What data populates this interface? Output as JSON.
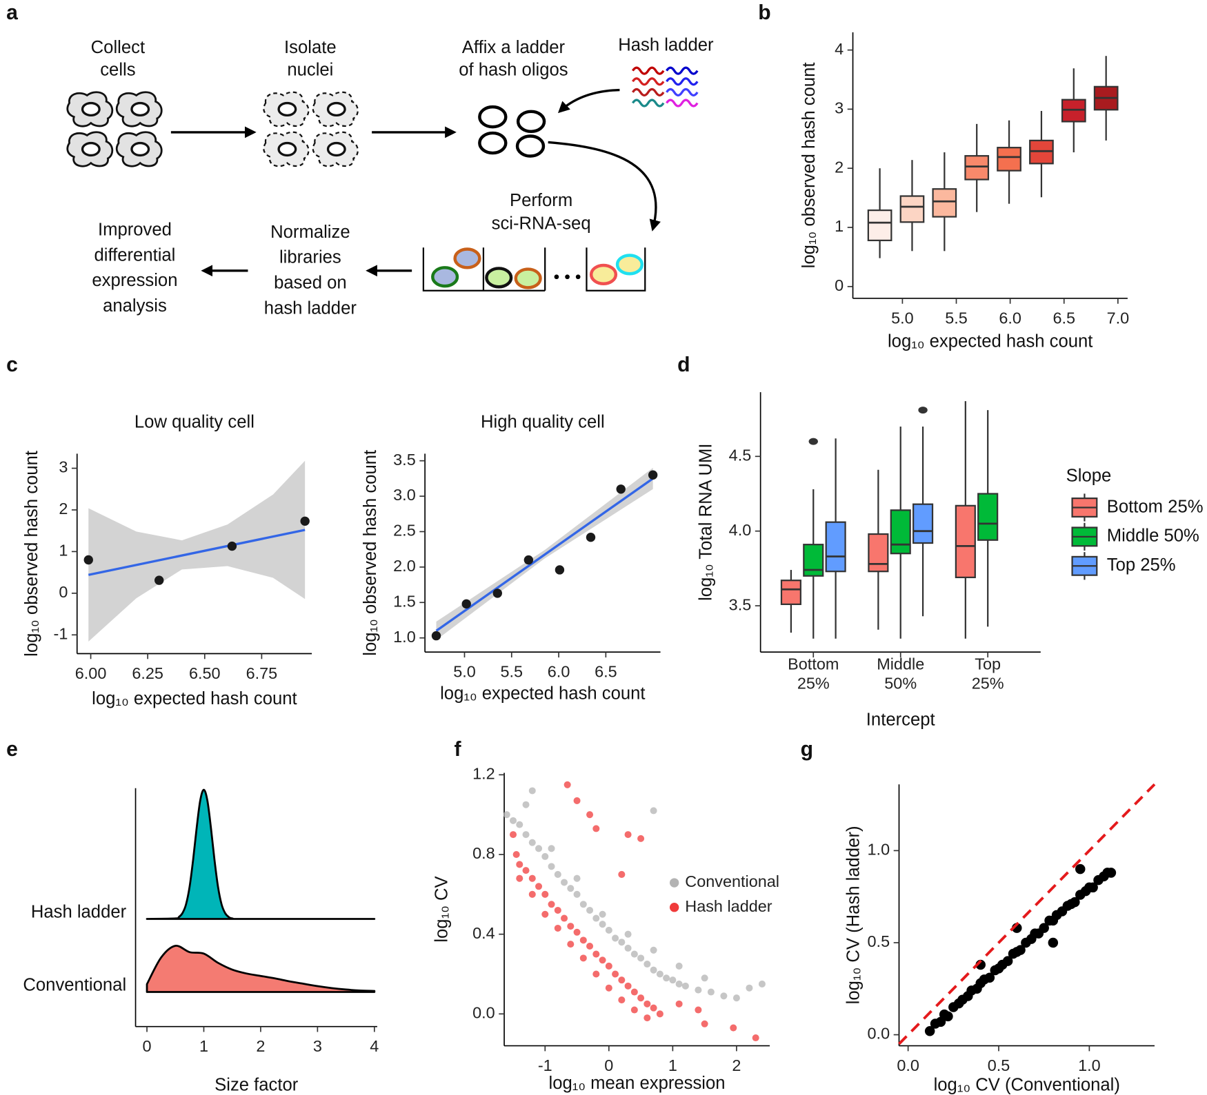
{
  "diagram": {
    "panel": "a",
    "steps": [
      [
        "Collect",
        "cells"
      ],
      [
        "Isolate",
        "nuclei"
      ],
      [
        "Affix a ladder",
        "of hash oligos"
      ],
      [
        "Perform",
        "sci-RNA-seq"
      ],
      [
        "Normalize",
        "libraries",
        "based on",
        "hash ladder"
      ],
      [
        "Improved",
        "differential",
        "expression",
        "analysis"
      ]
    ],
    "hash_ladder": "Hash ladder"
  },
  "chart_data": [
    {
      "panel": "b",
      "type": "box",
      "xlabel": "log₁₀ expected hash count",
      "ylabel": "log₁₀ observed hash count",
      "x": [
        4.79,
        5.09,
        5.39,
        5.69,
        5.99,
        6.29,
        6.59,
        6.89
      ],
      "low": [
        0.48,
        0.6,
        0.6,
        1.26,
        1.4,
        1.51,
        2.27,
        2.47
      ],
      "q1": [
        0.78,
        1.09,
        1.18,
        1.81,
        1.96,
        2.08,
        2.79,
        2.99
      ],
      "median": [
        1.08,
        1.35,
        1.44,
        2.03,
        2.19,
        2.29,
        2.99,
        3.19
      ],
      "q3": [
        1.29,
        1.53,
        1.65,
        2.21,
        2.35,
        2.47,
        3.16,
        3.38
      ],
      "high": [
        2.0,
        2.14,
        2.27,
        2.75,
        2.81,
        2.97,
        3.69,
        3.9
      ],
      "colors": [
        "#fdeee8",
        "#fcd5c4",
        "#fbb89e",
        "#f8896b",
        "#f4704f",
        "#e3463a",
        "#c7212b",
        "#a91b1f"
      ],
      "xlim": [
        4.54,
        7.09
      ],
      "xticks": [
        {
          "value": 5,
          "label": "5.0"
        },
        5.5,
        {
          "value": 6,
          "label": "6.0"
        },
        6.5,
        {
          "value": 7,
          "label": "7.0"
        }
      ],
      "ylim": [
        -0.2,
        4.3
      ],
      "yticks": [
        0,
        1,
        2,
        3,
        4
      ]
    },
    {
      "panel": "c",
      "type": "scatter_fit",
      "title": "Low quality cell",
      "xlabel": "log₁₀ expected hash count",
      "ylabel": "log₁₀ observed hash count",
      "x": [
        5.99,
        6.3,
        6.62,
        6.94
      ],
      "y": [
        0.8,
        0.31,
        1.13,
        1.73
      ],
      "fit": {
        "x": [
          5.99,
          6.94
        ],
        "y": [
          0.44,
          1.52
        ]
      },
      "band": {
        "x": [
          5.99,
          6.2,
          6.4,
          6.6,
          6.8,
          6.94
        ],
        "lower": [
          -1.16,
          -0.12,
          0.57,
          0.65,
          0.37,
          -0.14
        ],
        "upper": [
          2.04,
          1.48,
          1.27,
          1.65,
          2.37,
          3.18
        ]
      },
      "point_color": "#1a1a1a",
      "line_color": "#3366e6",
      "band_color": "#d3d3d3",
      "xlim": [
        5.94,
        6.97
      ],
      "xticks": [
        {
          "value": 6,
          "label": "6.00"
        },
        6.25,
        {
          "value": 6.5,
          "label": "6.50"
        },
        6.75
      ],
      "ylim": [
        -1.45,
        3.35
      ],
      "yticks": [
        -1,
        0,
        1,
        2,
        3
      ]
    },
    {
      "type": "scatter_fit",
      "title": "High quality cell",
      "xlabel": "log₁₀ expected hash count",
      "ylabel": "log₁₀ observed hash count",
      "x": [
        4.7,
        5.02,
        5.35,
        5.68,
        6.01,
        6.34,
        6.66,
        7.0
      ],
      "y": [
        1.03,
        1.48,
        1.63,
        2.1,
        1.96,
        2.42,
        3.1,
        3.3
      ],
      "fit": {
        "x": [
          4.7,
          7.0
        ],
        "y": [
          1.1,
          3.25
        ]
      },
      "band": {
        "x": [
          4.7,
          5.85,
          7.0
        ],
        "lower": [
          0.97,
          2.12,
          3.1
        ],
        "upper": [
          1.23,
          2.24,
          3.4
        ]
      },
      "point_color": "#1a1a1a",
      "line_color": "#3366e6",
      "band_color": "#d3d3d3",
      "xlim": [
        4.58,
        7.08
      ],
      "xticks": [
        {
          "value": 5,
          "label": "5.0"
        },
        5.5,
        {
          "value": 6,
          "label": "6.0"
        },
        6.5
      ],
      "ylim": [
        0.8,
        3.6
      ],
      "yticks": [
        {
          "value": 1,
          "label": "1.0"
        },
        1.5,
        {
          "value": 2,
          "label": "2.0"
        },
        2.5,
        {
          "value": 3,
          "label": "3.0"
        },
        3.5
      ]
    },
    {
      "panel": "d",
      "type": "grouped_box",
      "categories": [
        [
          "Bottom",
          "25%"
        ],
        [
          "Middle",
          "50%"
        ],
        [
          "Top",
          "25%"
        ]
      ],
      "xlabel": "Intercept",
      "ylabel": "log₁₀ Total RNA UMI",
      "legend_title": "Slope",
      "series": [
        {
          "name": "Bottom 25%",
          "color": "#f8766d",
          "boxes": [
            {
              "low": 3.32,
              "q1": 3.51,
              "median": 3.61,
              "q3": 3.67,
              "high": 3.74,
              "outliers": []
            },
            {
              "low": 3.34,
              "q1": 3.73,
              "median": 3.78,
              "q3": 3.98,
              "high": 4.41,
              "outliers": []
            },
            {
              "low": 3.28,
              "q1": 3.69,
              "median": 3.9,
              "q3": 4.17,
              "high": 4.87,
              "outliers": []
            }
          ]
        },
        {
          "name": "Middle 50%",
          "color": "#00ba38",
          "boxes": [
            {
              "low": 3.28,
              "q1": 3.7,
              "median": 3.74,
              "q3": 3.91,
              "high": 4.28,
              "outliers": [
                4.6
              ]
            },
            {
              "low": 3.28,
              "q1": 3.85,
              "median": 3.91,
              "q3": 4.14,
              "high": 4.7,
              "outliers": []
            },
            {
              "low": 3.36,
              "q1": 3.94,
              "median": 4.05,
              "q3": 4.25,
              "high": 4.81,
              "outliers": []
            }
          ]
        },
        {
          "name": "Top 25%",
          "color": "#619cff",
          "boxes": [
            {
              "low": 3.28,
              "q1": 3.73,
              "median": 3.83,
              "q3": 4.06,
              "high": 4.62,
              "outliers": []
            },
            {
              "low": 3.43,
              "q1": 3.92,
              "median": 4.0,
              "q3": 4.18,
              "high": 4.7,
              "outliers": [
                4.81
              ]
            },
            null
          ]
        }
      ],
      "ylim": [
        3.19,
        4.93
      ],
      "yticks": [
        3.5,
        {
          "value": 4,
          "label": "4.0"
        },
        4.5
      ]
    },
    {
      "panel": "e",
      "type": "ridge",
      "xlabel": "Size factor",
      "series": [
        {
          "name": "Hash ladder",
          "color": "#00b5b8",
          "x": [
            0,
            0.5,
            0.5625,
            0.625,
            0.6875,
            0.75,
            0.8125,
            0.875,
            0.9375,
            1,
            1.0625,
            1.125,
            1.1875,
            1.25,
            1.3125,
            1.375,
            1.4375,
            1.5,
            1.75,
            4
          ],
          "values": [
            0,
            0.01,
            0.04,
            0.12,
            0.3,
            0.66,
            1.22,
            1.88,
            2.44,
            2.66,
            2.44,
            1.88,
            1.22,
            0.66,
            0.3,
            0.12,
            0.04,
            0.01,
            0,
            0
          ]
        },
        {
          "name": "Conventional",
          "color": "#f47b72",
          "x": [
            0,
            0.25,
            0.5,
            0.75,
            1,
            1.25,
            1.5,
            1.75,
            2,
            2.25,
            2.5,
            2.75,
            3,
            3.25,
            3.5,
            3.75,
            4
          ],
          "values": [
            0.16,
            0.71,
            0.95,
            0.82,
            0.79,
            0.6,
            0.46,
            0.38,
            0.33,
            0.28,
            0.22,
            0.17,
            0.12,
            0.08,
            0.05,
            0.03,
            0.02
          ]
        }
      ],
      "xlim": [
        -0.2,
        4.05
      ],
      "xticks": [
        0,
        1,
        2,
        3,
        4
      ]
    },
    {
      "panel": "f",
      "type": "scatter",
      "xlabel": "log₁₀ mean expression",
      "ylabel": "log₁₀ CV",
      "series": [
        {
          "name": "Conventional",
          "color": "#b3b3b3",
          "x": [
            -1.6,
            -1.5,
            -1.4,
            -1.3,
            -1.2,
            -1.1,
            -1.0,
            -0.9,
            -0.8,
            -0.7,
            -0.6,
            -0.5,
            -0.4,
            -0.3,
            -0.2,
            -0.1,
            0,
            0.1,
            0.2,
            0.3,
            0.4,
            0.5,
            0.6,
            0.7,
            0.8,
            0.9,
            1.0,
            1.1,
            1.2,
            1.4,
            1.6,
            1.8,
            2.0,
            2.2,
            2.4,
            -1.3,
            -0.9,
            -0.5,
            -0.1,
            0.3,
            0.7,
            1.1,
            1.5,
            0.7,
            -1.2
          ],
          "y": [
            1.0,
            0.97,
            0.95,
            0.9,
            0.86,
            0.83,
            0.79,
            0.74,
            0.7,
            0.66,
            0.63,
            0.6,
            0.55,
            0.52,
            0.48,
            0.45,
            0.42,
            0.38,
            0.36,
            0.33,
            0.3,
            0.28,
            0.25,
            0.22,
            0.2,
            0.18,
            0.17,
            0.15,
            0.14,
            0.12,
            0.11,
            0.09,
            0.08,
            0.13,
            0.15,
            1.05,
            0.83,
            0.68,
            0.5,
            0.4,
            0.32,
            0.24,
            0.18,
            1.02,
            1.12
          ]
        },
        {
          "name": "Hash ladder",
          "color": "#f03b3b",
          "x": [
            -1.5,
            -1.45,
            -1.4,
            -1.3,
            -1.2,
            -1.1,
            -1.0,
            -0.9,
            -0.8,
            -0.7,
            -0.6,
            -0.5,
            -0.4,
            -0.3,
            -0.2,
            -0.1,
            0,
            0.1,
            0.2,
            0.3,
            0.4,
            0.5,
            0.6,
            0.7,
            0.8,
            -1.4,
            -1.2,
            -1.0,
            -0.8,
            -0.6,
            -0.4,
            -0.2,
            0,
            0.2,
            0.4,
            0.6,
            -0.65,
            -0.5,
            -0.3,
            -0.2,
            0.3,
            0.5,
            0.2,
            1.1,
            1.4,
            1.5,
            1.95,
            2.3
          ],
          "y": [
            0.9,
            0.8,
            0.75,
            0.72,
            0.68,
            0.64,
            0.6,
            0.55,
            0.52,
            0.48,
            0.44,
            0.41,
            0.37,
            0.34,
            0.3,
            0.27,
            0.24,
            0.2,
            0.17,
            0.14,
            0.11,
            0.08,
            0.05,
            0.03,
            0,
            0.68,
            0.6,
            0.5,
            0.43,
            0.35,
            0.28,
            0.2,
            0.13,
            0.07,
            0.02,
            -0.02,
            1.15,
            1.07,
            1.0,
            0.93,
            0.9,
            0.88,
            0.7,
            0.05,
            0.02,
            -0.05,
            -0.07,
            -0.12
          ]
        }
      ],
      "xlim": [
        -1.64,
        2.52
      ],
      "xticks": [
        -1,
        0,
        1,
        2
      ],
      "ylim": [
        -0.16,
        1.21
      ],
      "yticks": [
        {
          "value": 0,
          "label": "0.0"
        },
        0.4,
        0.8,
        1.2
      ]
    },
    {
      "panel": "g",
      "type": "scatter",
      "xlabel": "log₁₀ CV (Conventional)",
      "ylabel": "log₁₀ CV (Hash ladder)",
      "series": [
        {
          "color": "#000000",
          "x": [
            0.12,
            0.15,
            0.18,
            0.2,
            0.22,
            0.25,
            0.28,
            0.3,
            0.33,
            0.35,
            0.38,
            0.4,
            0.42,
            0.45,
            0.48,
            0.5,
            0.52,
            0.55,
            0.58,
            0.6,
            0.62,
            0.65,
            0.68,
            0.7,
            0.72,
            0.75,
            0.78,
            0.8,
            0.82,
            0.85,
            0.88,
            0.9,
            0.92,
            0.95,
            0.98,
            1.0,
            1.02,
            1.05,
            1.08,
            1.1,
            1.12,
            0.95,
            0.8,
            0.6,
            0.4
          ],
          "y": [
            0.02,
            0.06,
            0.07,
            0.11,
            0.1,
            0.15,
            0.17,
            0.19,
            0.21,
            0.24,
            0.25,
            0.28,
            0.3,
            0.31,
            0.35,
            0.36,
            0.38,
            0.4,
            0.44,
            0.45,
            0.46,
            0.5,
            0.52,
            0.55,
            0.55,
            0.58,
            0.62,
            0.62,
            0.65,
            0.67,
            0.7,
            0.71,
            0.72,
            0.76,
            0.78,
            0.8,
            0.8,
            0.84,
            0.86,
            0.88,
            0.88,
            0.9,
            0.5,
            0.58,
            0.38
          ]
        }
      ],
      "reference_line": {
        "slope": 1,
        "intercept": 0,
        "color": "#e41a1c"
      },
      "xlim": [
        -0.05,
        1.36
      ],
      "xticks": [
        {
          "value": 0,
          "label": "0.0"
        },
        0.5,
        {
          "value": 1,
          "label": "1.0"
        }
      ],
      "ylim": [
        -0.06,
        1.36
      ],
      "yticks": [
        {
          "value": 0,
          "label": "0.0"
        },
        0.5,
        {
          "value": 1,
          "label": "1.0"
        }
      ]
    }
  ]
}
